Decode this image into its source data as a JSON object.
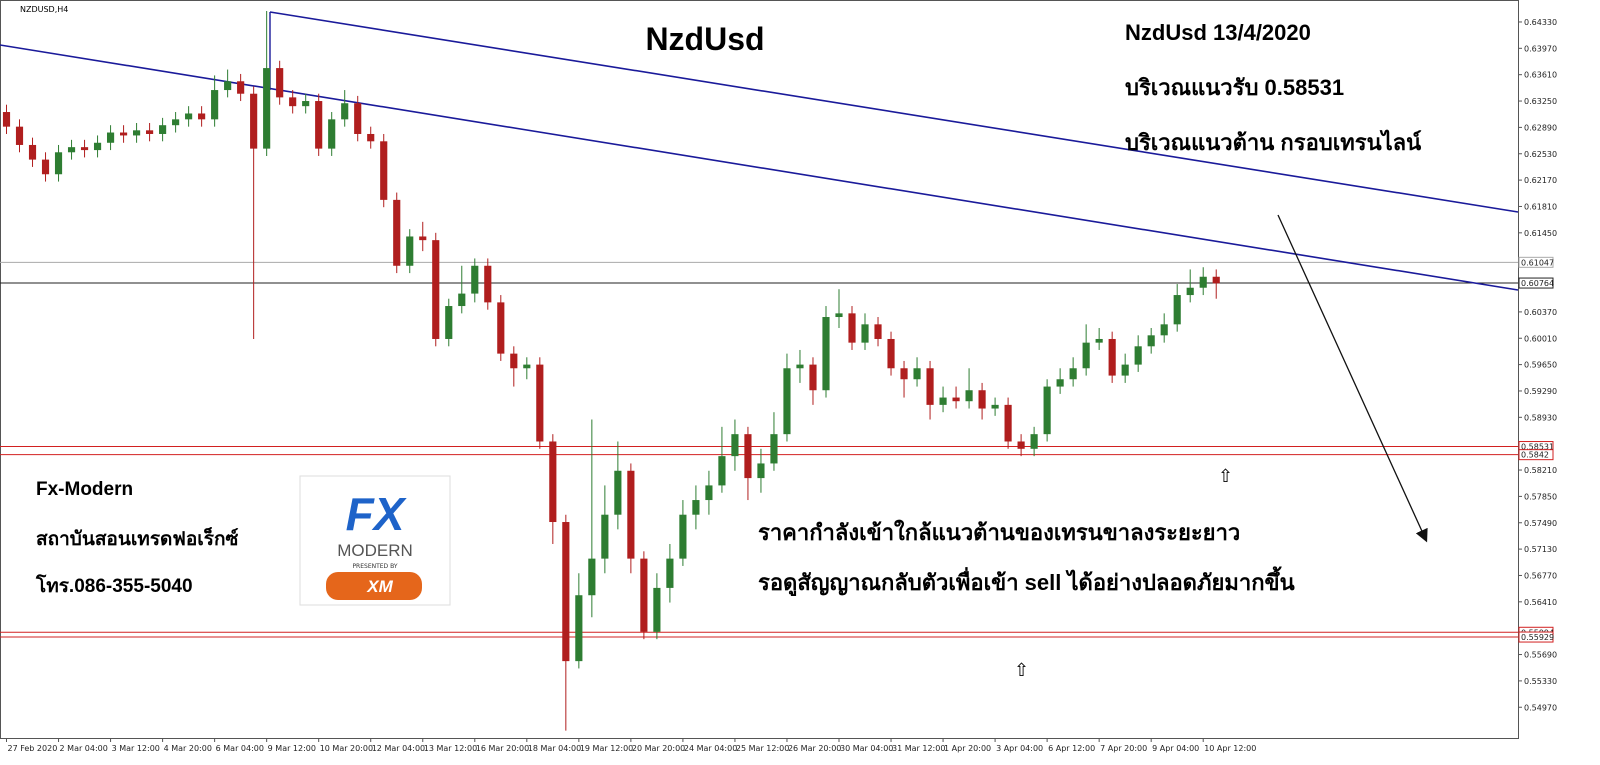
{
  "chart_data": {
    "type": "candlestick",
    "symbol": "NZDUSD,H4",
    "title": "NzdUsd",
    "annotations": [
      "NzdUsd 13/4/2020",
      "บริเวณแนวรับ 0.58531",
      "บริเวณแนวต้าน กรอบเทรนไลน์",
      "Fx-Modern",
      "สถาบันสอนเทรดฟอเร็กซ์",
      "โทร.086-355-5040",
      "ราคากำลังเข้าใกล้แนวต้านของเทรนขาลงระยะยาว",
      "รอดูสัญญาณกลับตัวเพื่อเข้า sell ได้อย่างปลอดภัยมากขึ้น"
    ],
    "logo": {
      "mark": "FX",
      "name": "MODERN",
      "presented": "PRESENTED BY",
      "broker": "XM"
    },
    "up_color": "#2e7d32",
    "down_color": "#b01e1e",
    "ylim": [
      0.5455,
      0.6463
    ],
    "xlim": [
      -0.5,
      116.2
    ],
    "yticks": [
      {
        "value": 0.6433,
        "label": "0.64330"
      },
      {
        "value": 0.6397,
        "label": "0.63970"
      },
      {
        "value": 0.6361,
        "label": "0.63610"
      },
      {
        "value": 0.6325,
        "label": "0.63250"
      },
      {
        "value": 0.6289,
        "label": "0.62890"
      },
      {
        "value": 0.6253,
        "label": "0.62530"
      },
      {
        "value": 0.6217,
        "label": "0.62170"
      },
      {
        "value": 0.6181,
        "label": "0.61810"
      },
      {
        "value": 0.6145,
        "label": "0.61450"
      },
      {
        "value": 0.6037,
        "label": "0.60370"
      },
      {
        "value": 0.6001,
        "label": "0.60010"
      },
      {
        "value": 0.5965,
        "label": "0.59650"
      },
      {
        "value": 0.5929,
        "label": "0.59290"
      },
      {
        "value": 0.5893,
        "label": "0.58930"
      },
      {
        "value": 0.5821,
        "label": "0.58210"
      },
      {
        "value": 0.5785,
        "label": "0.57850"
      },
      {
        "value": 0.5749,
        "label": "0.57490"
      },
      {
        "value": 0.5713,
        "label": "0.57130"
      },
      {
        "value": 0.5677,
        "label": "0.56770"
      },
      {
        "value": 0.5641,
        "label": "0.56410"
      },
      {
        "value": 0.5569,
        "label": "0.55690"
      },
      {
        "value": 0.5533,
        "label": "0.55330"
      },
      {
        "value": 0.5497,
        "label": "0.54970"
      }
    ],
    "xticks": [
      {
        "value": 0,
        "label": "27 Feb 2020"
      },
      {
        "value": 4,
        "label": "2 Mar 04:00"
      },
      {
        "value": 8,
        "label": "3 Mar 12:00"
      },
      {
        "value": 12,
        "label": "4 Mar 20:00"
      },
      {
        "value": 16,
        "label": "6 Mar 04:00"
      },
      {
        "value": 20,
        "label": "9 Mar 12:00"
      },
      {
        "value": 24,
        "label": "10 Mar 20:00"
      },
      {
        "value": 28,
        "label": "12 Mar 04:00"
      },
      {
        "value": 32,
        "label": "13 Mar 12:00"
      },
      {
        "value": 36,
        "label": "16 Mar 20:00"
      },
      {
        "value": 40,
        "label": "18 Mar 04:00"
      },
      {
        "value": 44,
        "label": "19 Mar 12:00"
      },
      {
        "value": 48,
        "label": "20 Mar 20:00"
      },
      {
        "value": 52,
        "label": "24 Mar 04:00"
      },
      {
        "value": 56,
        "label": "25 Mar 12:00"
      },
      {
        "value": 60,
        "label": "26 Mar 20:00"
      },
      {
        "value": 64,
        "label": "30 Mar 04:00"
      },
      {
        "value": 68,
        "label": "31 Mar 12:00"
      },
      {
        "value": 72,
        "label": "1 Apr 20:00"
      },
      {
        "value": 76,
        "label": "3 Apr 04:00"
      },
      {
        "value": 80,
        "label": "6 Apr 12:00"
      },
      {
        "value": 84,
        "label": "7 Apr 20:00"
      },
      {
        "value": 88,
        "label": "9 Apr 04:00"
      },
      {
        "value": 92,
        "label": "10 Apr 12:00"
      }
    ],
    "price_lines": [
      {
        "value": 0.61047,
        "color": "#aaaaaa"
      },
      {
        "value": 0.60764,
        "color": "#222222"
      },
      {
        "value": 0.58531,
        "color": "#d22020"
      },
      {
        "value": 0.5842,
        "color": "#d22020"
      },
      {
        "value": 0.55994,
        "color": "#d22020"
      },
      {
        "value": 0.55929,
        "color": "#d22020"
      }
    ],
    "open": [
      0.631,
      0.629,
      0.6265,
      0.6245,
      0.6225,
      0.6255,
      0.6262,
      0.6258,
      0.6268,
      0.6282,
      0.6278,
      0.6285,
      0.628,
      0.6292,
      0.63,
      0.6308,
      0.63,
      0.634,
      0.6352,
      0.6335,
      0.626,
      0.637,
      0.633,
      0.6318,
      0.6325,
      0.626,
      0.63,
      0.6322,
      0.628,
      0.627,
      0.619,
      0.61,
      0.614,
      0.6135,
      0.6,
      0.6045,
      0.6062,
      0.61,
      0.605,
      0.598,
      0.596,
      0.5965,
      0.586,
      0.575,
      0.556,
      0.565,
      0.57,
      0.576,
      0.582,
      0.57,
      0.56,
      0.566,
      0.57,
      0.576,
      0.578,
      0.58,
      0.584,
      0.587,
      0.581,
      0.583,
      0.587,
      0.596,
      0.5965,
      0.593,
      0.603,
      0.6035,
      0.5995,
      0.602,
      0.6,
      0.596,
      0.5945,
      0.596,
      0.591,
      0.592,
      0.5915,
      0.593,
      0.5905,
      0.591,
      0.586,
      0.585,
      0.587,
      0.5935,
      0.5945,
      0.596,
      0.5995,
      0.6,
      0.595,
      0.5965,
      0.599,
      0.6005,
      0.602,
      0.606,
      0.607,
      0.6085
    ],
    "high": [
      0.632,
      0.63,
      0.6275,
      0.6255,
      0.6265,
      0.6272,
      0.6272,
      0.6278,
      0.6292,
      0.6292,
      0.6295,
      0.6295,
      0.6302,
      0.631,
      0.6318,
      0.6318,
      0.636,
      0.6368,
      0.6362,
      0.6345,
      0.6448,
      0.638,
      0.634,
      0.6335,
      0.6335,
      0.631,
      0.634,
      0.6332,
      0.629,
      0.628,
      0.62,
      0.615,
      0.616,
      0.6145,
      0.6055,
      0.61,
      0.611,
      0.611,
      0.606,
      0.599,
      0.5975,
      0.5975,
      0.587,
      0.576,
      0.568,
      0.589,
      0.58,
      0.586,
      0.583,
      0.571,
      0.568,
      0.572,
      0.578,
      0.58,
      0.582,
      0.588,
      0.589,
      0.588,
      0.585,
      0.59,
      0.598,
      0.5985,
      0.5975,
      0.6045,
      0.6068,
      0.6045,
      0.6035,
      0.603,
      0.601,
      0.597,
      0.5975,
      0.597,
      0.5935,
      0.5935,
      0.596,
      0.594,
      0.592,
      0.592,
      0.587,
      0.588,
      0.5945,
      0.596,
      0.5975,
      0.602,
      0.6015,
      0.601,
      0.598,
      0.6005,
      0.6015,
      0.6035,
      0.6075,
      0.6095,
      0.6098,
      0.6095
    ],
    "low": [
      0.628,
      0.6255,
      0.6235,
      0.6215,
      0.6215,
      0.6245,
      0.6248,
      0.6248,
      0.6258,
      0.6268,
      0.6268,
      0.627,
      0.627,
      0.6282,
      0.629,
      0.629,
      0.629,
      0.633,
      0.6325,
      0.6,
      0.625,
      0.632,
      0.6308,
      0.6308,
      0.625,
      0.625,
      0.629,
      0.627,
      0.626,
      0.618,
      0.609,
      0.609,
      0.612,
      0.599,
      0.599,
      0.6035,
      0.605,
      0.604,
      0.597,
      0.5935,
      0.5945,
      0.585,
      0.572,
      0.5465,
      0.555,
      0.562,
      0.568,
      0.574,
      0.568,
      0.559,
      0.559,
      0.564,
      0.569,
      0.574,
      0.576,
      0.579,
      0.582,
      0.578,
      0.579,
      0.582,
      0.586,
      0.594,
      0.591,
      0.592,
      0.6015,
      0.5985,
      0.5985,
      0.599,
      0.595,
      0.592,
      0.5935,
      0.589,
      0.59,
      0.5905,
      0.5905,
      0.589,
      0.5895,
      0.585,
      0.584,
      0.584,
      0.586,
      0.5925,
      0.5935,
      0.595,
      0.5985,
      0.594,
      0.594,
      0.5955,
      0.598,
      0.5995,
      0.601,
      0.605,
      0.606,
      0.6055
    ],
    "close": [
      0.629,
      0.6265,
      0.6245,
      0.6225,
      0.6255,
      0.6262,
      0.6258,
      0.6268,
      0.6282,
      0.6278,
      0.6285,
      0.628,
      0.6292,
      0.63,
      0.6308,
      0.63,
      0.634,
      0.6352,
      0.6335,
      0.626,
      0.637,
      0.633,
      0.6318,
      0.6325,
      0.626,
      0.63,
      0.6322,
      0.628,
      0.627,
      0.619,
      0.61,
      0.614,
      0.6135,
      0.6,
      0.6045,
      0.6062,
      0.61,
      0.605,
      0.598,
      0.596,
      0.5965,
      0.586,
      0.575,
      0.556,
      0.565,
      0.57,
      0.576,
      0.582,
      0.57,
      0.56,
      0.566,
      0.57,
      0.576,
      0.578,
      0.58,
      0.584,
      0.587,
      0.581,
      0.583,
      0.587,
      0.596,
      0.5965,
      0.593,
      0.603,
      0.6035,
      0.5995,
      0.602,
      0.6,
      0.596,
      0.5945,
      0.596,
      0.591,
      0.592,
      0.5915,
      0.593,
      0.5905,
      0.591,
      0.586,
      0.585,
      0.587,
      0.5935,
      0.5945,
      0.596,
      0.5995,
      0.6,
      0.595,
      0.5965,
      0.599,
      0.6005,
      0.602,
      0.606,
      0.607,
      0.6085,
      0.6076
    ]
  }
}
